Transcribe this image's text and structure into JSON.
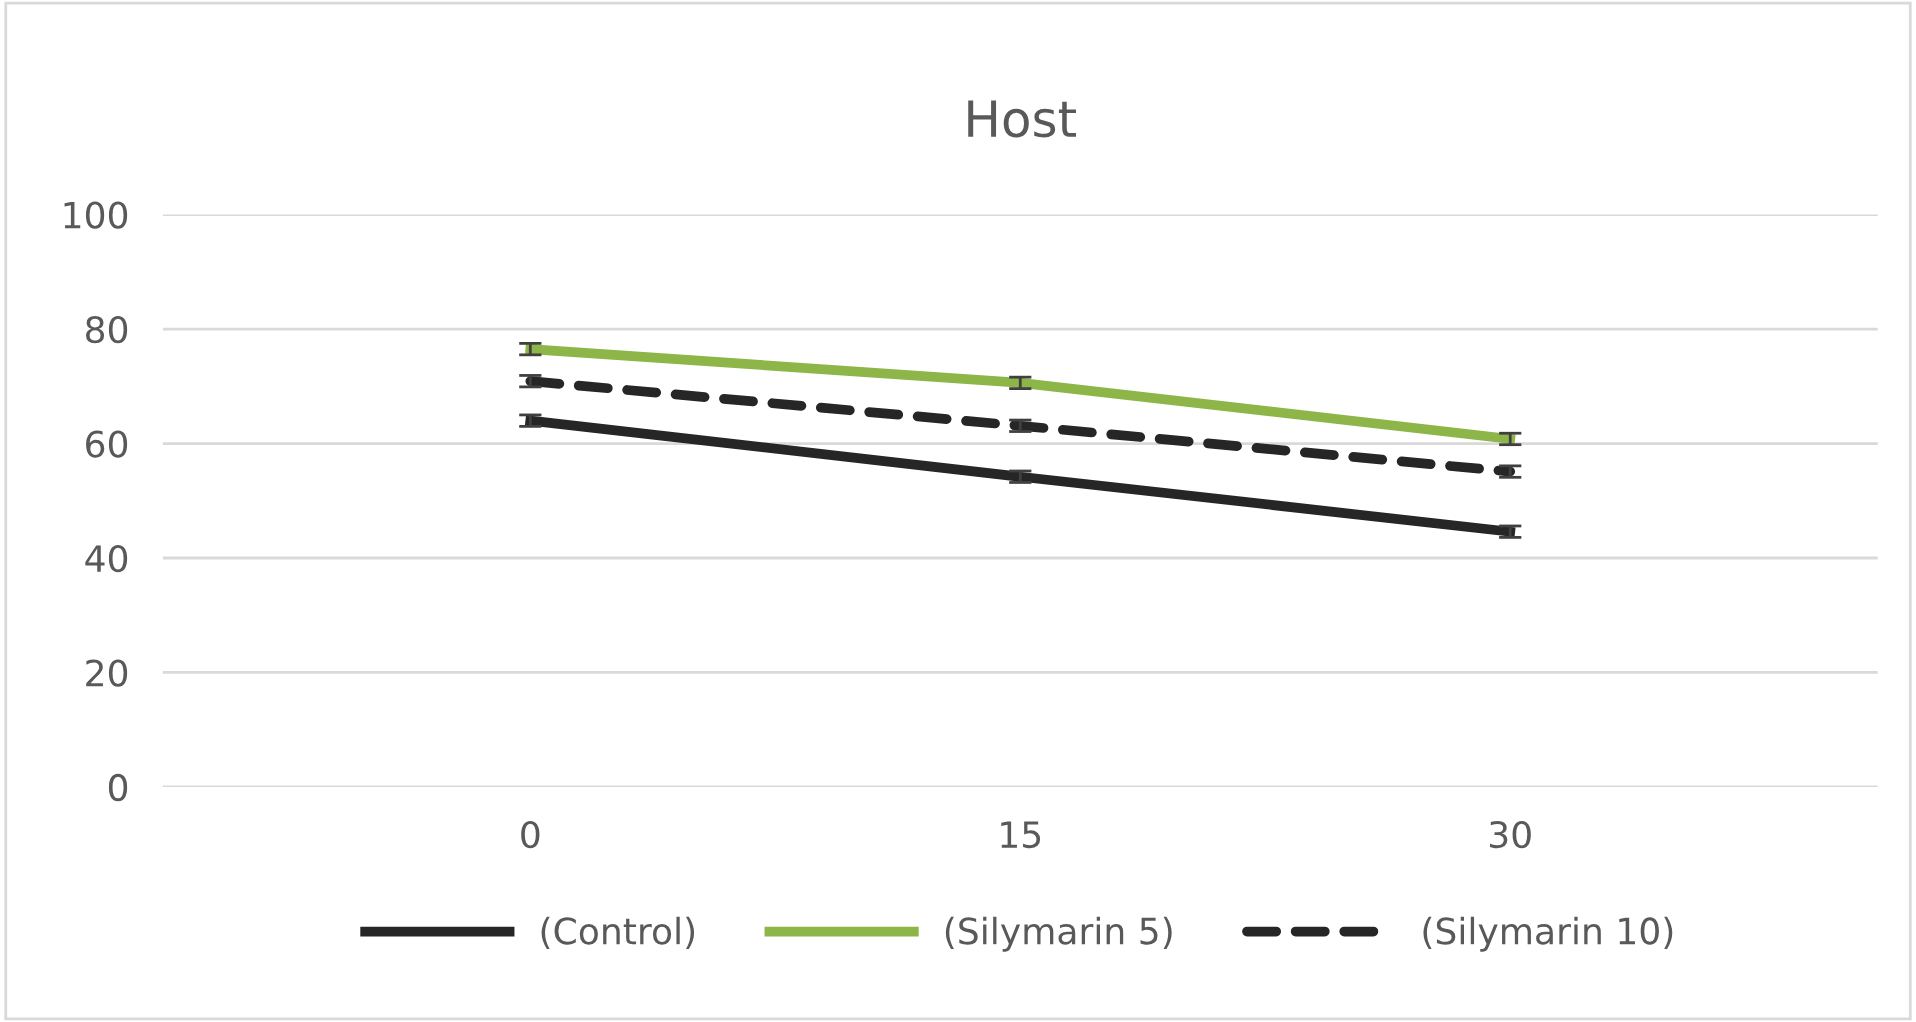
{
  "chart_data": {
    "type": "line",
    "title": "Host",
    "categories": [
      "0",
      "15",
      "30"
    ],
    "series": [
      {
        "name": "(Control)",
        "color": "#262626",
        "values": [
          64,
          54.2,
          44.6
        ],
        "errors": [
          1,
          1,
          1
        ],
        "line_style": "solid"
      },
      {
        "name": "(Silymarin 5)",
        "color": "#8db548",
        "values": [
          76.5,
          70.6,
          60.8
        ],
        "errors": [
          1,
          1,
          1
        ],
        "line_style": "solid"
      },
      {
        "name": "(Silymarin 10)",
        "color": "#262626",
        "values": [
          70.9,
          63.1,
          55.1
        ],
        "errors": [
          1,
          1,
          1
        ],
        "line_style": "dashed"
      }
    ],
    "ylim": [
      0,
      100
    ],
    "yticks": [
      0,
      20,
      40,
      60,
      80,
      100
    ],
    "grid": "y",
    "legend": "bottom",
    "marker": "none"
  }
}
